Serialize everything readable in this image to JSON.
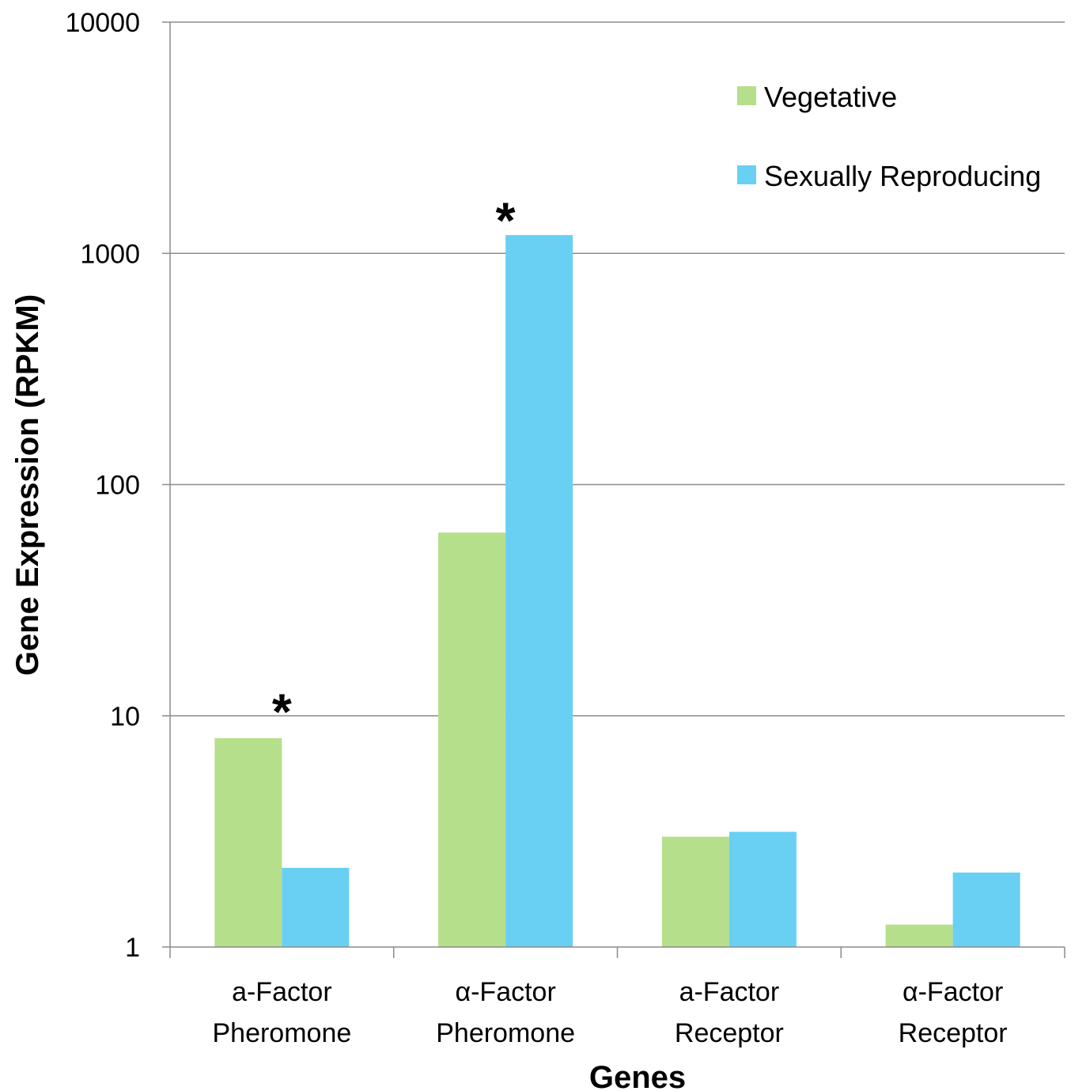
{
  "chart_data": {
    "type": "bar",
    "categories": [
      [
        "a-Factor",
        "Pheromone"
      ],
      [
        "α-Factor",
        "Pheromone"
      ],
      [
        "a-Factor",
        "Receptor"
      ],
      [
        "α-Factor",
        "Receptor"
      ]
    ],
    "series": [
      {
        "name": "Vegetative",
        "color": "#b6df8b",
        "values": [
          8.0,
          62,
          3.0,
          1.25
        ]
      },
      {
        "name": "Sexually Reproducing",
        "color": "#69d0f4",
        "values": [
          2.2,
          1200,
          3.15,
          2.1
        ]
      }
    ],
    "xlabel": "Genes",
    "ylabel": "Gene Expression (RPKM)",
    "yscale": "log",
    "ylim": [
      1,
      10000
    ],
    "yticks": [
      "1",
      "10",
      "100",
      "1000",
      "10000"
    ],
    "grid": true,
    "legend_position": "top-right",
    "annotations": [
      {
        "text": "*",
        "category_index": 0,
        "y": 12
      },
      {
        "text": "*",
        "category_index": 1,
        "y": 1600
      }
    ]
  }
}
